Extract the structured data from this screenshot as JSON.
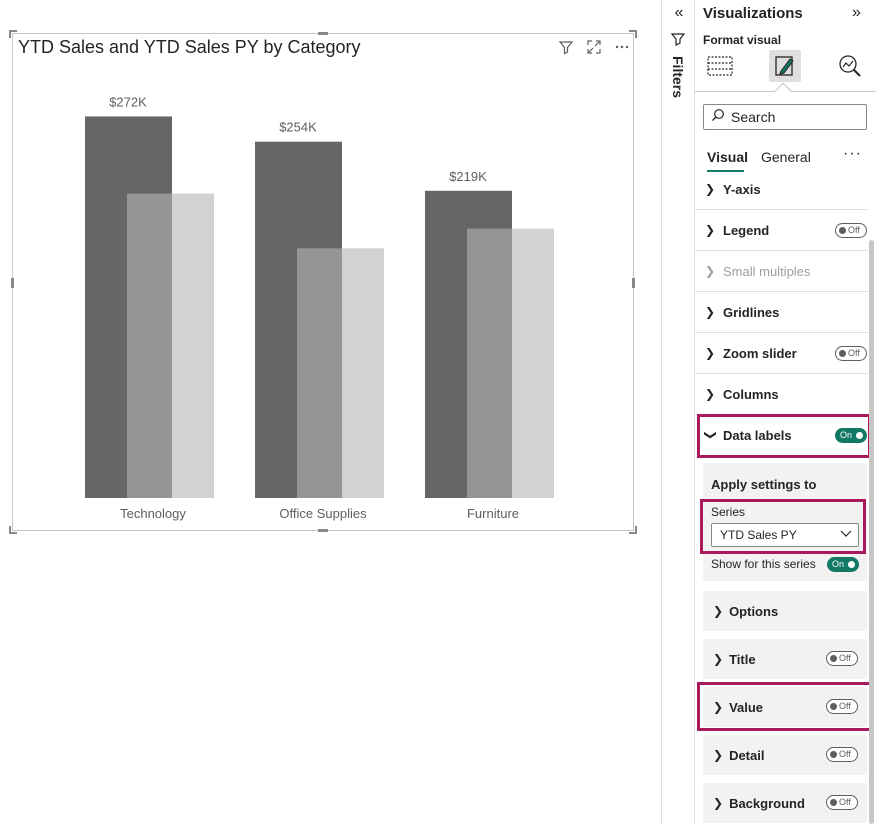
{
  "visual": {
    "title": "YTD Sales and YTD Sales PY by Category"
  },
  "chart_data": {
    "type": "bar",
    "categories": [
      "Technology",
      "Office Supplies",
      "Furniture"
    ],
    "series": [
      {
        "values": [
          272,
          254,
          219
        ],
        "color": "#666666"
      },
      {
        "values": [
          217,
          178,
          192
        ],
        "color": "#959595"
      },
      {
        "values": [
          217,
          178,
          192
        ],
        "color": "#d2d2d2"
      }
    ],
    "data_labels": [
      "$272K",
      "$254K",
      "$219K"
    ],
    "ylim": [
      0,
      288
    ],
    "grid": false,
    "legend": "none"
  },
  "filters": {
    "label": "Filters"
  },
  "viz_pane": {
    "title": "Visualizations",
    "format_visual": "Format visual",
    "search_placeholder": "Search",
    "tabs": {
      "visual": "Visual",
      "general": "General",
      "more": "···"
    },
    "sections": [
      {
        "label": "Y-axis"
      },
      {
        "label": "Legend",
        "toggle": "Off"
      },
      {
        "label": "Small multiples"
      },
      {
        "label": "Gridlines"
      },
      {
        "label": "Zoom slider",
        "toggle": "Off"
      },
      {
        "label": "Columns"
      },
      {
        "label": "Data labels",
        "toggle": "On"
      }
    ],
    "apply": {
      "title": "Apply settings to",
      "series_label": "Series",
      "series_value": "YTD Sales PY",
      "show_label": "Show for this series",
      "show_toggle": "On"
    },
    "cards": [
      {
        "label": "Options"
      },
      {
        "label": "Title",
        "toggle": "Off"
      },
      {
        "label": "Value",
        "toggle": "Off"
      },
      {
        "label": "Detail",
        "toggle": "Off"
      },
      {
        "label": "Background",
        "toggle": "Off"
      }
    ]
  }
}
